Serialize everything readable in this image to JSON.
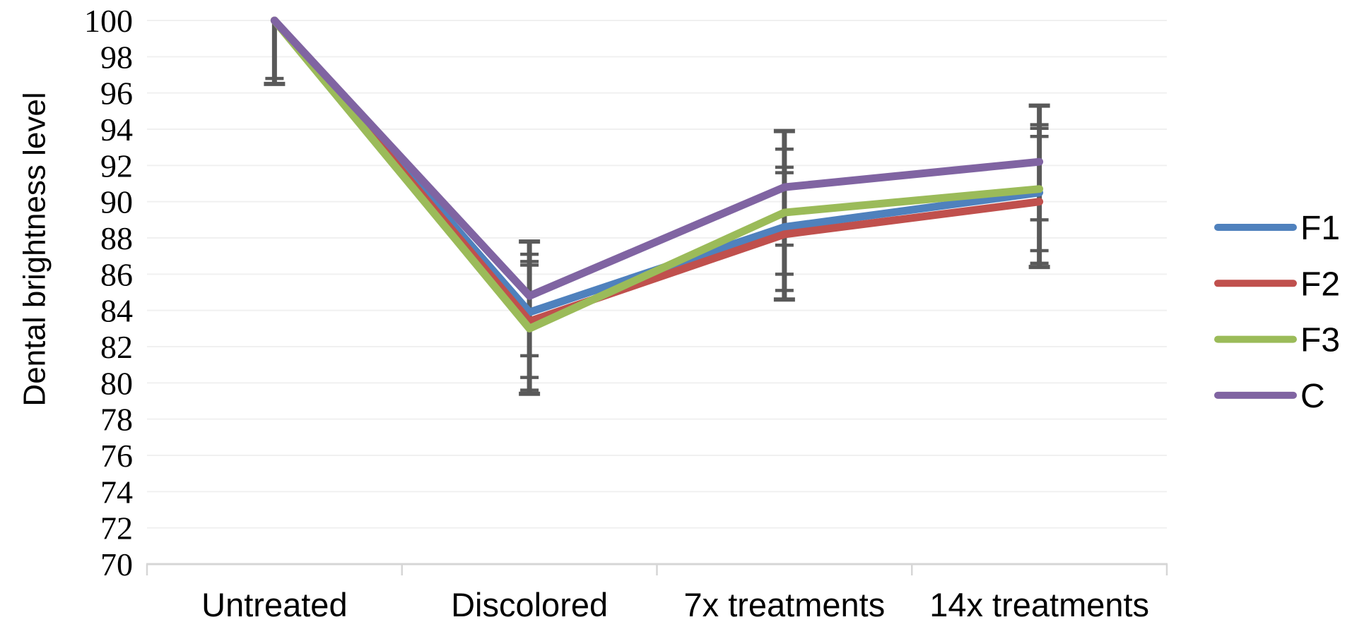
{
  "chart_data": {
    "type": "line",
    "title": "",
    "ylabel": "Dental brightness level",
    "xlabel": "",
    "categories": [
      "Untreated",
      "Discolored",
      "7x treatments",
      "14x treatments"
    ],
    "series": [
      {
        "name": "F1",
        "color": "#4F81BD",
        "values": [
          100,
          83.9,
          88.6,
          90.5
        ]
      },
      {
        "name": "F2",
        "color": "#C0504D",
        "values": [
          100,
          83.4,
          88.2,
          90.0
        ]
      },
      {
        "name": "F3",
        "color": "#9BBB59",
        "values": [
          100,
          83.0,
          89.4,
          90.7
        ]
      },
      {
        "name": "C",
        "color": "#8064A2",
        "values": [
          100,
          84.8,
          90.8,
          92.2
        ]
      }
    ],
    "error_bars": {
      "color": "#595959",
      "per_category": [
        {
          "line": [
            96.5,
            100.0
          ],
          "caps": [
            96.8,
            96.5
          ]
        },
        {
          "line": [
            79.4,
            87.8
          ],
          "caps": [
            87.8,
            87.1,
            86.7,
            86.5,
            81.5,
            80.3,
            79.6,
            79.4
          ]
        },
        {
          "line": [
            84.6,
            93.9
          ],
          "caps": [
            93.9,
            92.9,
            91.9,
            91.6,
            87.6,
            86.0,
            85.1,
            84.6
          ]
        },
        {
          "line": [
            86.4,
            95.3
          ],
          "caps": [
            95.3,
            94.25,
            94.05,
            93.6,
            89.0,
            87.3,
            86.6,
            86.4
          ]
        }
      ]
    },
    "ylim": [
      70,
      100
    ],
    "yticks": [
      100,
      98,
      96,
      94,
      92,
      90,
      88,
      86,
      84,
      82,
      80,
      78,
      76,
      74,
      72,
      70
    ],
    "grid": true,
    "legend_position": "right",
    "legend": [
      "F1",
      "F2",
      "F3",
      "C"
    ],
    "styles": {
      "gridline_color": "#F0F0F0",
      "axis_color": "#D6D6D6",
      "error_bar_color": "#595959",
      "text_color": "#000000"
    }
  }
}
